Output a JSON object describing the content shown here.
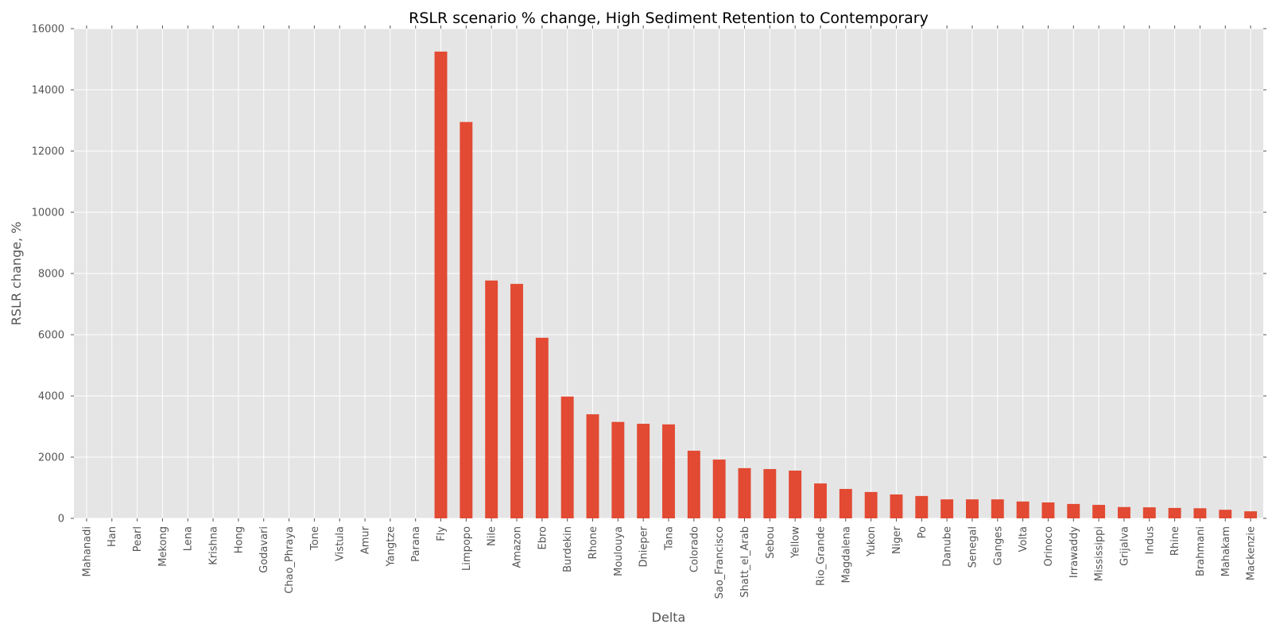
{
  "chart_data": {
    "type": "bar",
    "title": "RSLR scenario % change, High Sediment Retention to Contemporary",
    "xlabel": "Delta",
    "ylabel": "RSLR change, %",
    "ylim": [
      0,
      16000
    ],
    "yticks": [
      0,
      2000,
      4000,
      6000,
      8000,
      10000,
      12000,
      14000,
      16000
    ],
    "grid": true,
    "legend": "none",
    "categories": [
      "Mahanadi",
      "Han",
      "Pearl",
      "Mekong",
      "Lena",
      "Krishna",
      "Hong",
      "Godavari",
      "Chao_Phraya",
      "Tone",
      "Vistula",
      "Amur",
      "Yangtze",
      "Parana",
      "Fly",
      "Limpopo",
      "Nile",
      "Amazon",
      "Ebro",
      "Burdekin",
      "Rhone",
      "Moulouya",
      "Dnieper",
      "Tana",
      "Colorado",
      "Sao_Francisco",
      "Shatt_el_Arab",
      "Sebou",
      "Yellow",
      "Rio_Grande",
      "Magdalena",
      "Yukon",
      "Niger",
      "Po",
      "Danube",
      "Senegal",
      "Ganges",
      "Volta",
      "Orinoco",
      "Irrawaddy",
      "Mississippi",
      "Grijalva",
      "Indus",
      "Rhine",
      "Brahmani",
      "Mahakam",
      "Mackenzie"
    ],
    "values": [
      0,
      0,
      0,
      0,
      0,
      0,
      0,
      0,
      0,
      0,
      0,
      0,
      0,
      0,
      15250,
      12950,
      7770,
      7660,
      5900,
      3980,
      3400,
      3150,
      3090,
      3070,
      2210,
      1920,
      1640,
      1610,
      1560,
      1140,
      960,
      860,
      780,
      730,
      620,
      620,
      620,
      550,
      520,
      470,
      440,
      370,
      360,
      340,
      330,
      280,
      230
    ],
    "colors": {
      "bar": "#e24a33",
      "plot_bg": "#e5e5e5",
      "grid": "#ffffff"
    }
  }
}
